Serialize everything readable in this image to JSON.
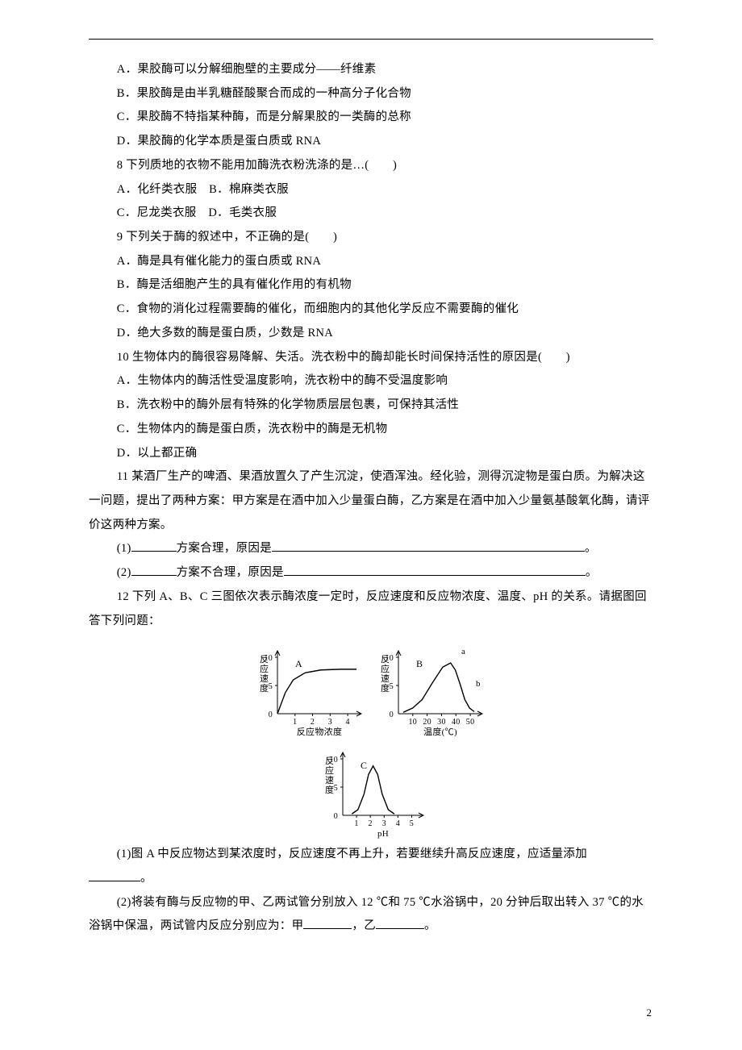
{
  "colors": {
    "text": "#000000",
    "background": "#ffffff",
    "rule": "#000000",
    "axis": "#000000"
  },
  "typography": {
    "body_fontsize_pt": 11,
    "line_height": 2.05,
    "font_family": "SimSun"
  },
  "lines": {
    "l1": "A．果胶酶可以分解细胞壁的主要成分——纤维素",
    "l2": "B．果胶酶是由半乳糖醛酸聚合而成的一种高分子化合物",
    "l3": "C．果胶酶不特指某种酶，而是分解果胶的一类酶的总称",
    "l4": "D．果胶酶的化学本质是蛋白质或 RNA",
    "l5": "8 下列质地的衣物不能用加酶洗衣粉洗涤的是…(　　)",
    "l6": "A．化纤类衣服　B．棉麻类衣服",
    "l7": "C．尼龙类衣服　D．毛类衣服",
    "l8": "9 下列关于酶的叙述中，不正确的是(　　)",
    "l9": "A．酶是具有催化能力的蛋白质或 RNA",
    "l10": "B．酶是活细胞产生的具有催化作用的有机物",
    "l11": "C．食物的消化过程需要酶的催化，而细胞内的其他化学反应不需要酶的催化",
    "l12": "D．绝大多数的酶是蛋白质，少数是 RNA",
    "l13": "10 生物体内的酶很容易降解、失活。洗衣粉中的酶却能长时间保持活性的原因是(　　)",
    "l14": "A．生物体内的酶活性受温度影响，洗衣粉中的酶不受温度影响",
    "l15": "B．洗衣粉中的酶外层有特殊的化学物质层层包裹，可保持其活性",
    "l16": "C．生物体内的酶是蛋白质，洗衣粉中的酶是无机物",
    "l17": "D．以上都正确",
    "l18": "11 某酒厂生产的啤酒、果酒放置久了产生沉淀，使酒浑浊。经化验，测得沉淀物是蛋白质。为解决这一问题，提出了两种方案：甲方案是在酒中加入少量蛋白酶，乙方案是在酒中加入少量氨基酸氧化酶，请评价这两种方案。",
    "l19a": "(1)",
    "l19b": "方案合理，原因是",
    "l19c": "。",
    "l20a": "(2)",
    "l20b": "方案不合理，原因是",
    "l20c": "。",
    "l21": "12 下列 A、B、C 三图依次表示酶浓度一定时，反应速度和反应物浓度、温度、pH 的关系。请据图回答下列问题：",
    "l22": "(1)图 A 中反应物达到某浓度时，反应速度不再上升，若要继续升高反应速度，应适量添加",
    "l22b": "。",
    "l23a": "(2)将装有酶与反应物的甲、乙两试管分别放入 12 ℃和 75 ℃水浴锅中，20 分钟后取出转入 37 ℃的水浴锅中保温，两试管内反应分别应为：甲",
    "l23b": "，乙",
    "l23c": "。"
  },
  "charts": {
    "row1_width": 280,
    "row1_height": 120,
    "row2_width": 140,
    "row2_height": 120,
    "axis_color": "#000000",
    "font_size": 11,
    "A": {
      "type": "line",
      "label": "A",
      "ylabel": "反应速度",
      "xlabel": "反应物浓度",
      "yticks": [
        "0",
        "5",
        "10"
      ],
      "xticks": [
        "1",
        "2",
        "3",
        "4"
      ],
      "curve": [
        [
          0,
          0
        ],
        [
          10,
          30
        ],
        [
          20,
          48
        ],
        [
          35,
          58
        ],
        [
          55,
          62
        ],
        [
          80,
          63
        ],
        [
          100,
          63
        ]
      ]
    },
    "B": {
      "type": "line",
      "label": "B",
      "ylabel": "反应速度",
      "xlabel": "温度(℃)",
      "yticks": [
        "0",
        "5",
        "10"
      ],
      "xticks": [
        "10",
        "20",
        "30",
        "40",
        "50"
      ],
      "curve": [
        [
          6,
          2
        ],
        [
          18,
          8
        ],
        [
          30,
          20
        ],
        [
          42,
          42
        ],
        [
          56,
          66
        ],
        [
          66,
          72
        ],
        [
          72,
          62
        ],
        [
          78,
          42
        ],
        [
          84,
          20
        ],
        [
          90,
          8
        ],
        [
          96,
          3
        ]
      ],
      "annot_a": "a",
      "annot_b": "b"
    },
    "C": {
      "type": "line",
      "label": "C",
      "ylabel": "反应速度",
      "xlabel": "pH",
      "yticks": [
        "0",
        "5",
        "10"
      ],
      "xticks": [
        "1",
        "2",
        "3",
        "4",
        "5"
      ],
      "curve": [
        [
          12,
          2
        ],
        [
          20,
          8
        ],
        [
          28,
          30
        ],
        [
          34,
          58
        ],
        [
          40,
          70
        ],
        [
          46,
          58
        ],
        [
          52,
          30
        ],
        [
          60,
          8
        ],
        [
          68,
          2
        ]
      ]
    }
  },
  "page_number": "2"
}
